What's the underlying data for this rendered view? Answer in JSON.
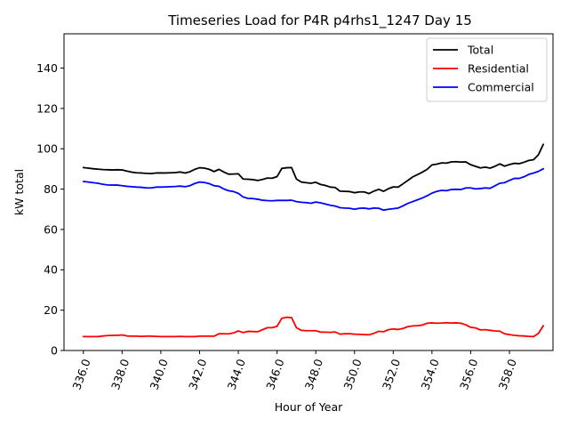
{
  "chart_data": {
    "type": "line",
    "title": "Timeseries Load for P4R p4rhs1_1247  Day 15",
    "xlabel": "Hour of Year",
    "ylabel": "kW total",
    "xlim": [
      335.0,
      360.25
    ],
    "ylim": [
      0,
      157
    ],
    "xticks": [
      336.0,
      338.0,
      340.0,
      342.0,
      344.0,
      346.0,
      348.0,
      350.0,
      352.0,
      354.0,
      356.0,
      358.0
    ],
    "xtick_labels": [
      "336.0",
      "338.0",
      "340.0",
      "342.0",
      "344.0",
      "346.0",
      "348.0",
      "350.0",
      "352.0",
      "354.0",
      "356.0",
      "358.0"
    ],
    "yticks": [
      0,
      20,
      40,
      60,
      80,
      100,
      120,
      140
    ],
    "ytick_labels": [
      "0",
      "20",
      "40",
      "60",
      "80",
      "100",
      "120",
      "140"
    ],
    "grid": false,
    "legend_position": "top-right",
    "x": [
      336.0,
      336.25,
      336.5,
      336.75,
      337.0,
      337.25,
      337.5,
      337.75,
      338.0,
      338.25,
      338.5,
      338.75,
      339.0,
      339.25,
      339.5,
      339.75,
      340.0,
      340.25,
      340.5,
      340.75,
      341.0,
      341.25,
      341.5,
      341.75,
      342.0,
      342.25,
      342.5,
      342.75,
      343.0,
      343.25,
      343.5,
      343.75,
      344.0,
      344.25,
      344.5,
      344.75,
      345.0,
      345.25,
      345.5,
      345.75,
      346.0,
      346.25,
      346.5,
      346.75,
      347.0,
      347.25,
      347.5,
      347.75,
      348.0,
      348.25,
      348.5,
      348.75,
      349.0,
      349.25,
      349.5,
      349.75,
      350.0,
      350.25,
      350.5,
      350.75,
      351.0,
      351.25,
      351.5,
      351.75,
      352.0,
      352.25,
      352.5,
      352.75,
      353.0,
      353.25,
      353.5,
      353.75,
      354.0,
      354.25,
      354.5,
      354.75,
      355.0,
      355.25,
      355.5,
      355.75,
      356.0,
      356.25,
      356.5,
      356.75,
      357.0,
      357.25,
      357.5,
      357.75,
      358.0,
      358.25,
      358.5,
      358.75,
      359.0,
      359.25,
      359.5,
      359.75
    ],
    "series": [
      {
        "name": "Total",
        "color": "#000000",
        "values": [
          90.7,
          90.4,
          90.1,
          89.9,
          89.7,
          89.6,
          89.5,
          89.6,
          89.5,
          88.9,
          88.4,
          88.1,
          88.0,
          87.8,
          87.7,
          88.0,
          88.0,
          88.0,
          88.1,
          88.2,
          88.5,
          88.0,
          88.6,
          89.8,
          90.6,
          90.4,
          89.8,
          88.7,
          89.8,
          88.5,
          87.4,
          87.5,
          87.6,
          85.0,
          84.9,
          84.7,
          84.3,
          84.8,
          85.5,
          85.4,
          86.2,
          90.3,
          90.6,
          90.7,
          85.0,
          83.5,
          83.2,
          82.9,
          83.4,
          82.3,
          81.8,
          81.0,
          80.8,
          79.0,
          78.9,
          78.8,
          78.2,
          78.6,
          78.6,
          77.8,
          79.0,
          79.9,
          78.9,
          80.2,
          81.1,
          81.0,
          82.6,
          84.3,
          86.0,
          87.2,
          88.4,
          89.8,
          92.0,
          92.4,
          93.0,
          92.9,
          93.5,
          93.6,
          93.4,
          93.5,
          92.1,
          91.3,
          90.5,
          90.9,
          90.4,
          91.3,
          92.5,
          91.4,
          92.2,
          92.8,
          92.6,
          93.3,
          94.2,
          94.6,
          97.1,
          102.2
        ]
      },
      {
        "name": "Residential",
        "color": "#ff0000",
        "values": [
          6.9,
          6.9,
          6.9,
          6.9,
          7.2,
          7.4,
          7.5,
          7.5,
          7.7,
          7.2,
          7.1,
          7.1,
          7.0,
          7.1,
          7.1,
          7.0,
          6.9,
          6.9,
          6.9,
          6.9,
          7.0,
          6.9,
          6.9,
          6.9,
          7.1,
          7.1,
          7.1,
          7.1,
          8.3,
          8.3,
          8.2,
          8.7,
          9.7,
          8.9,
          9.5,
          9.4,
          9.3,
          10.3,
          11.3,
          11.3,
          12.0,
          16.0,
          16.5,
          16.3,
          11.3,
          10.0,
          9.8,
          9.8,
          9.8,
          9.1,
          9.1,
          9.0,
          9.2,
          8.1,
          8.3,
          8.3,
          8.1,
          8.0,
          7.9,
          7.8,
          8.5,
          9.5,
          9.3,
          10.3,
          10.7,
          10.4,
          10.9,
          11.8,
          12.2,
          12.3,
          12.6,
          13.5,
          13.7,
          13.5,
          13.6,
          13.8,
          13.6,
          13.7,
          13.5,
          12.7,
          11.5,
          11.2,
          10.2,
          10.3,
          10.0,
          9.7,
          9.6,
          8.3,
          7.9,
          7.5,
          7.3,
          7.2,
          7.0,
          6.9,
          8.5,
          12.3
        ]
      },
      {
        "name": "Commercial",
        "color": "#0000ff",
        "values": [
          83.8,
          83.5,
          83.2,
          82.9,
          82.4,
          82.1,
          82.0,
          82.0,
          81.7,
          81.4,
          81.2,
          81.0,
          80.9,
          80.6,
          80.6,
          81.0,
          81.0,
          81.1,
          81.2,
          81.3,
          81.5,
          81.2,
          81.7,
          82.8,
          83.5,
          83.3,
          82.7,
          81.7,
          81.4,
          80.1,
          79.2,
          78.8,
          77.9,
          76.1,
          75.4,
          75.3,
          75.0,
          74.5,
          74.3,
          74.2,
          74.4,
          74.4,
          74.4,
          74.5,
          73.8,
          73.5,
          73.3,
          73.0,
          73.6,
          73.2,
          72.6,
          72.0,
          71.6,
          70.8,
          70.6,
          70.5,
          70.0,
          70.5,
          70.6,
          70.2,
          70.6,
          70.5,
          69.6,
          70.0,
          70.3,
          70.6,
          71.7,
          72.9,
          73.8,
          74.7,
          75.6,
          76.7,
          78.0,
          78.9,
          79.4,
          79.2,
          79.8,
          79.9,
          79.8,
          80.6,
          80.6,
          80.1,
          80.3,
          80.6,
          80.4,
          81.6,
          82.9,
          83.2,
          84.3,
          85.3,
          85.3,
          86.1,
          87.3,
          88.0,
          88.8,
          90.1
        ]
      }
    ]
  }
}
